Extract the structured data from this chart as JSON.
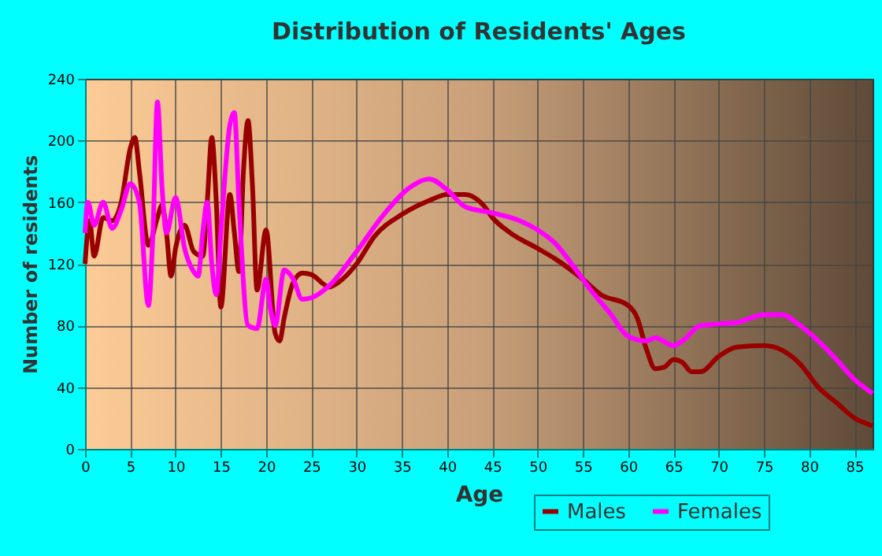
{
  "chart_data": {
    "type": "line",
    "title": "Distribution of Residents' Ages",
    "xlabel": "Age",
    "ylabel": "Number of residents",
    "xlim": [
      0,
      87
    ],
    "xticks": [
      0,
      5,
      10,
      15,
      20,
      25,
      30,
      35,
      40,
      45,
      50,
      55,
      60,
      65,
      70,
      75,
      80,
      85
    ],
    "ylim": [
      0,
      240
    ],
    "yticks": [
      0,
      40,
      80,
      120,
      160,
      200,
      240
    ],
    "grid": true,
    "legend": "bottom",
    "marker": "none",
    "line_style": "solid",
    "series": [
      {
        "name": "Males",
        "color": "#990000",
        "x": [
          0,
          0.5,
          1,
          2,
          3,
          4,
          5,
          5.5,
          6,
          7,
          8,
          8.5,
          9,
          9.5,
          10,
          11,
          12,
          13,
          13.5,
          14,
          14.5,
          15,
          16,
          16.5,
          17,
          17.5,
          18,
          18.5,
          19,
          20,
          21,
          21.5,
          22,
          23,
          24,
          25,
          27,
          28,
          30,
          32,
          35,
          38,
          40,
          42,
          44,
          45,
          47,
          50,
          52,
          55,
          57,
          60,
          61,
          62,
          63,
          64,
          65,
          66,
          67,
          68,
          70,
          72,
          75,
          77,
          79,
          81,
          83,
          85,
          87
        ],
        "values": [
          120,
          148,
          125,
          150,
          148,
          160,
          195,
          202,
          180,
          132,
          150,
          158,
          140,
          112,
          130,
          145,
          128,
          125,
          160,
          202,
          160,
          92,
          165,
          140,
          115,
          180,
          213,
          170,
          103,
          142,
          75,
          70,
          85,
          108,
          114,
          113,
          105,
          108,
          120,
          138,
          152,
          161,
          165,
          165,
          158,
          150,
          140,
          130,
          123,
          110,
          100,
          93,
          85,
          65,
          52,
          53,
          58,
          56,
          50,
          50,
          60,
          66,
          67,
          64,
          55,
          40,
          30,
          20,
          15
        ]
      },
      {
        "name": "Females",
        "color": "#ff00ff",
        "x": [
          0,
          0.3,
          1,
          2,
          3,
          4,
          5,
          6,
          7,
          7.5,
          8,
          8.5,
          9,
          10,
          11,
          12,
          12.5,
          13,
          13.5,
          14,
          14.5,
          15,
          16,
          16.5,
          17,
          18,
          19,
          20,
          20.5,
          21,
          22,
          23,
          24,
          25,
          27,
          30,
          33,
          36,
          38,
          40,
          42,
          45,
          48,
          50,
          52,
          54,
          56,
          58,
          60,
          62,
          63,
          65,
          66,
          68,
          70,
          72,
          75,
          77,
          79,
          81,
          83,
          85,
          87
        ],
        "values": [
          140,
          160,
          145,
          160,
          143,
          155,
          172,
          160,
          93,
          140,
          225,
          170,
          140,
          163,
          130,
          115,
          112,
          140,
          160,
          120,
          100,
          140,
          210,
          218,
          160,
          80,
          78,
          110,
          90,
          80,
          116,
          110,
          97,
          98,
          106,
          128,
          152,
          170,
          175,
          168,
          157,
          153,
          148,
          142,
          133,
          118,
          102,
          88,
          73,
          70,
          72,
          67,
          70,
          80,
          81,
          82,
          87,
          87,
          80,
          70,
          58,
          45,
          36
        ]
      }
    ]
  }
}
